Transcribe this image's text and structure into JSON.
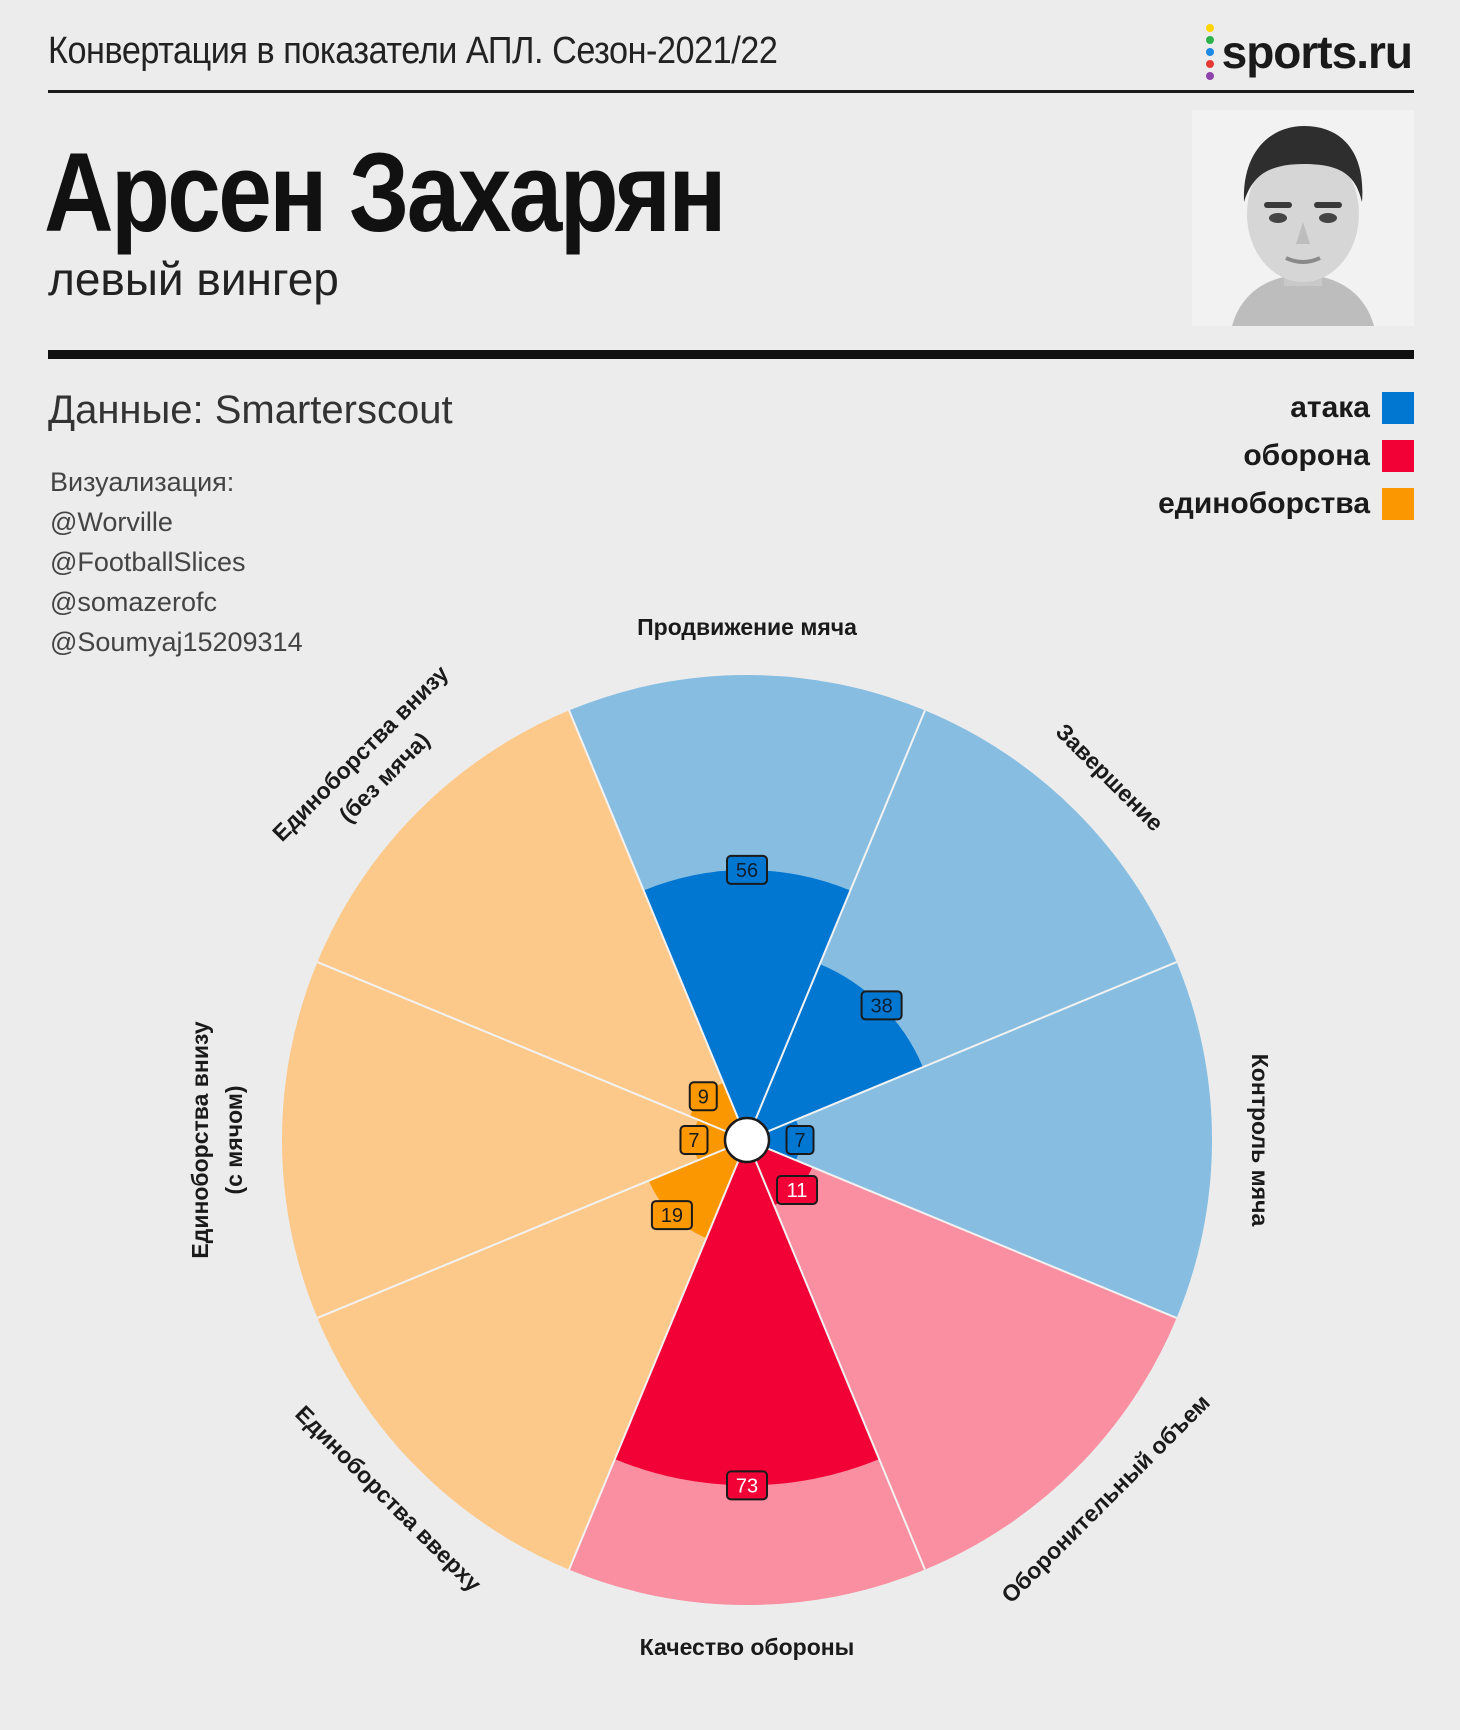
{
  "header": {
    "title": "Конвертация в показатели АПЛ. Сезон-2021/22",
    "logo_text": "sports.ru",
    "logo_dot_colors": [
      "#ffd400",
      "#2bb24c",
      "#1e88e5",
      "#e53935",
      "#8e44ad"
    ]
  },
  "player": {
    "name": "Арсен Захарян",
    "role": "левый вингер",
    "photo_icon": "player-portrait"
  },
  "source": "Данные: Smarterscout",
  "credits": {
    "label": "Визуализация:",
    "handles": [
      "@Worville",
      "@FootballSlices",
      "@somazerofc",
      "@Soumyaj15209314"
    ]
  },
  "legend": [
    {
      "label": "атака",
      "color": "#0277d2"
    },
    {
      "label": "оборона",
      "color": "#f20136"
    },
    {
      "label": "единоборства",
      "color": "#fb9700"
    }
  ],
  "chart_data": {
    "type": "polar-bar",
    "rlim": [
      0,
      100
    ],
    "start_angle_deg": 0,
    "direction": "clockwise",
    "series": [
      {
        "category": "Продвижение мяча",
        "value": 56,
        "group": "атака"
      },
      {
        "category": "Завершение",
        "value": 38,
        "group": "атака"
      },
      {
        "category": "Контроль мяча",
        "value": 7,
        "group": "атака"
      },
      {
        "category": "Оборонительный объем",
        "value": 11,
        "group": "оборона"
      },
      {
        "category": "Качество обороны",
        "value": 73,
        "group": "оборона"
      },
      {
        "category": "Единоборства вверху",
        "value": 19,
        "group": "единоборства"
      },
      {
        "category": "Единоборства внизу (с мячом)",
        "value": 7,
        "group": "единоборства"
      },
      {
        "category": "Единоборства внизу (без мяча)",
        "value": 9,
        "group": "единоборства"
      }
    ],
    "category_labels": [
      [
        "Продвижение мяча"
      ],
      [
        "Завершение"
      ],
      [
        "Контроль мяча"
      ],
      [
        "Оборонительный объем"
      ],
      [
        "Качество обороны"
      ],
      [
        "Единоборства вверху"
      ],
      [
        "Единоборства внизу",
        "(с мячом)"
      ],
      [
        "Единоборства внизу",
        "(без мяча)"
      ]
    ],
    "colors": {
      "атака": {
        "full": "#0277d2",
        "light": "#87bde1"
      },
      "оборона": {
        "full": "#f20136",
        "light": "#f98fa0"
      },
      "единоборства": {
        "full": "#fb9700",
        "light": "#fdc98a"
      }
    }
  }
}
